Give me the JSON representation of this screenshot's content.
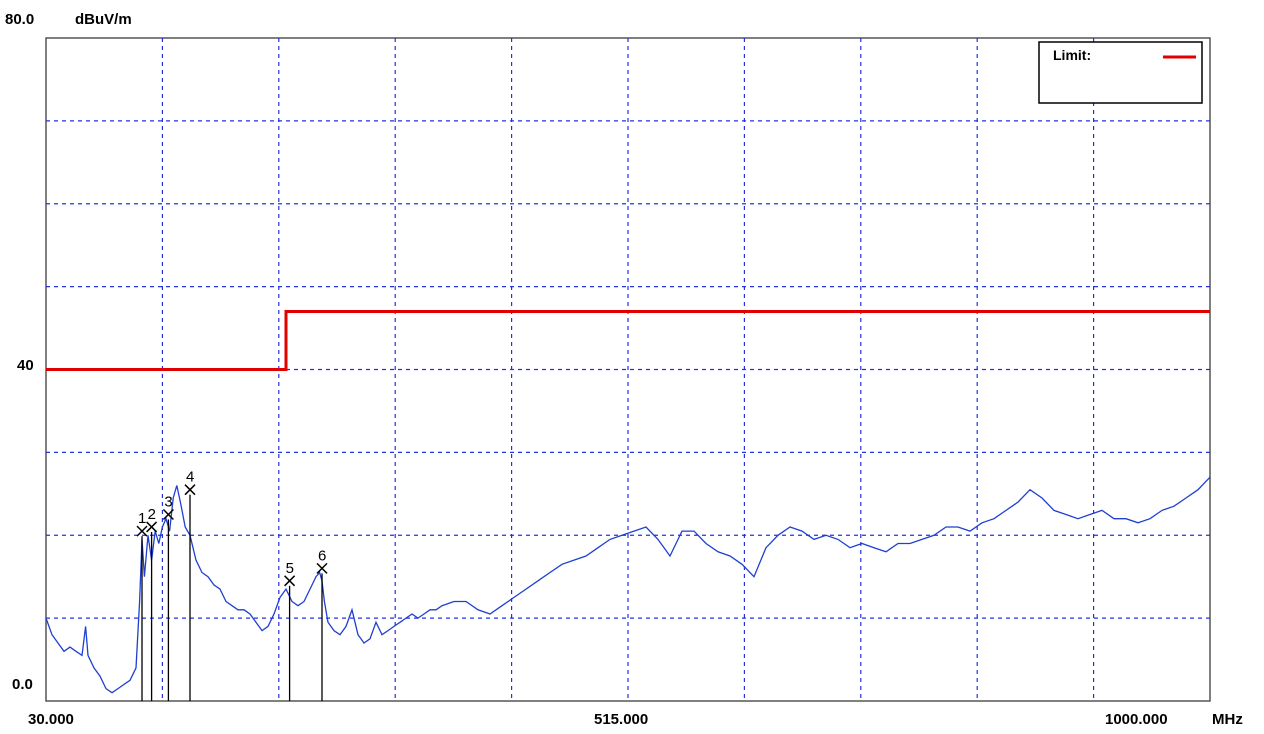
{
  "chart_data": {
    "type": "line",
    "title": "",
    "y_unit": "dBuV/m",
    "x_unit": "MHz",
    "xlim": [
      30.0,
      1000.0
    ],
    "ylim": [
      0.0,
      80.0
    ],
    "y_tick_labels": [
      "80.0",
      "40",
      "0.0"
    ],
    "x_tick_labels": [
      "30.000",
      "515.000",
      "1000.000"
    ],
    "grid": true,
    "grid_divisions": {
      "x": 10,
      "y": 8
    },
    "legend": {
      "placement": "top-right",
      "entries": [
        {
          "label": "Limit:",
          "color": "#e00000"
        }
      ]
    },
    "limit_line": {
      "name": "Limit:",
      "color": "#e00000",
      "x": [
        30,
        230,
        230,
        1000
      ],
      "y": [
        40.0,
        40.0,
        47.0,
        47.0
      ]
    },
    "trace": {
      "color": "#1f3fd0",
      "x": [
        30,
        35,
        40,
        45,
        50,
        55,
        60,
        63,
        65,
        70,
        75,
        80,
        85,
        90,
        95,
        100,
        105,
        108,
        110,
        112,
        115,
        118,
        121,
        124,
        127,
        130,
        133,
        136,
        139,
        142,
        146,
        150,
        155,
        160,
        165,
        170,
        175,
        180,
        185,
        190,
        195,
        200,
        205,
        210,
        215,
        220,
        225,
        230,
        235,
        240,
        245,
        250,
        255,
        258,
        260,
        262,
        265,
        270,
        275,
        280,
        285,
        290,
        295,
        300,
        305,
        310,
        315,
        320,
        325,
        330,
        335,
        340,
        345,
        350,
        355,
        360,
        370,
        380,
        390,
        400,
        410,
        420,
        430,
        440,
        450,
        460,
        470,
        480,
        490,
        500,
        510,
        520,
        530,
        540,
        550,
        560,
        570,
        580,
        590,
        600,
        610,
        620,
        630,
        640,
        650,
        660,
        670,
        680,
        690,
        700,
        710,
        720,
        730,
        740,
        750,
        760,
        770,
        780,
        790,
        800,
        810,
        820,
        830,
        840,
        850,
        860,
        870,
        880,
        890,
        900,
        910,
        920,
        930,
        940,
        950,
        960,
        970,
        980,
        990,
        1000
      ],
      "y": [
        10.0,
        8.0,
        7.0,
        6.0,
        6.5,
        6.0,
        5.5,
        9.0,
        5.5,
        4.0,
        3.0,
        1.5,
        1.0,
        1.5,
        2.0,
        2.5,
        4.0,
        12.0,
        19.5,
        15.0,
        20.0,
        17.0,
        20.5,
        19.0,
        21.0,
        22.0,
        20.5,
        24.5,
        26.0,
        24.0,
        21.0,
        20.0,
        17.0,
        15.5,
        15.0,
        14.0,
        13.5,
        12.0,
        11.5,
        11.0,
        11.0,
        10.5,
        9.5,
        8.5,
        9.0,
        10.5,
        12.5,
        13.5,
        12.0,
        11.5,
        12.0,
        13.5,
        15.0,
        15.5,
        14.5,
        12.0,
        9.5,
        8.5,
        8.0,
        9.0,
        11.0,
        8.0,
        7.0,
        7.5,
        9.5,
        8.0,
        8.5,
        9.0,
        9.5,
        10.0,
        10.5,
        10.0,
        10.5,
        11.0,
        11.0,
        11.5,
        12.0,
        12.0,
        11.0,
        10.5,
        11.5,
        12.5,
        13.5,
        14.5,
        15.5,
        16.5,
        17.0,
        17.5,
        18.5,
        19.5,
        20.0,
        20.5,
        21.0,
        19.5,
        17.5,
        20.5,
        20.5,
        19.0,
        18.0,
        17.5,
        16.5,
        15.0,
        18.5,
        20.0,
        21.0,
        20.5,
        19.5,
        20.0,
        19.5,
        18.5,
        19.0,
        18.5,
        18.0,
        19.0,
        19.0,
        19.5,
        20.0,
        21.0,
        21.0,
        20.5,
        21.5,
        22.0,
        23.0,
        24.0,
        25.5,
        24.5,
        23.0,
        22.5,
        22.0,
        22.5,
        23.0,
        22.0,
        22.0,
        21.5,
        22.0,
        23.0,
        23.5,
        24.5,
        25.5,
        27.0
      ]
    },
    "markers": [
      {
        "label": "1",
        "x": 110.0,
        "y": 20.5
      },
      {
        "label": "2",
        "x": 118.0,
        "y": 21.0
      },
      {
        "label": "3",
        "x": 132.0,
        "y": 22.5
      },
      {
        "label": "4",
        "x": 150.0,
        "y": 25.5
      },
      {
        "label": "5",
        "x": 233.0,
        "y": 14.5
      },
      {
        "label": "6",
        "x": 260.0,
        "y": 16.0
      }
    ]
  }
}
